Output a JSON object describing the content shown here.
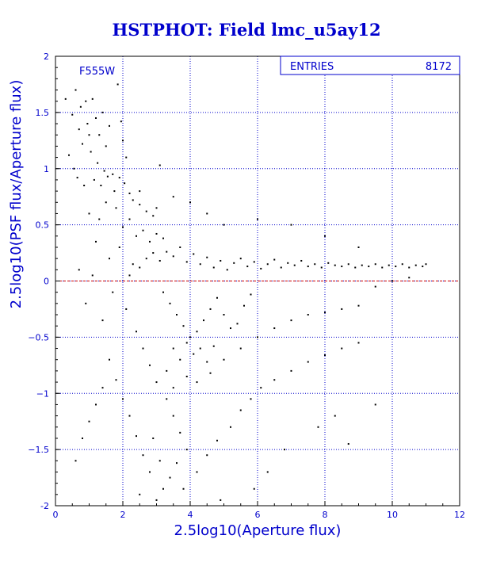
{
  "chart_data": {
    "type": "scatter",
    "title": "HSTPHOT: Field lmc_u5ay12",
    "xlabel": "2.5log10(Aperture flux)",
    "ylabel": "2.5log10(PSF flux/Aperture flux)",
    "xlim": [
      0,
      12
    ],
    "ylim": [
      -2,
      2
    ],
    "x_ticks": [
      0,
      2,
      4,
      6,
      8,
      10,
      12
    ],
    "x_tick_labels": [
      "0",
      "2",
      "4",
      "6",
      "8",
      "10",
      "12"
    ],
    "y_ticks": [
      -2,
      -1.5,
      -1,
      -0.5,
      0,
      0.5,
      1,
      1.5,
      2
    ],
    "y_tick_labels": [
      "-2",
      "−1.5",
      "−1",
      "−0.5",
      "0",
      "0.5",
      "1",
      "1.5",
      "2"
    ],
    "grid": true,
    "reference_line_y": 0,
    "annotation": "F555W",
    "stats": {
      "label": "ENTRIES",
      "value": "8172"
    },
    "colors": {
      "text": "#0000cc",
      "grid": "#0000cc",
      "frame": "#000000",
      "points": "#000000",
      "reference_line": "#cc0000"
    },
    "points": [
      [
        0.3,
        1.62
      ],
      [
        0.5,
        1.48
      ],
      [
        0.6,
        1.7
      ],
      [
        0.7,
        1.35
      ],
      [
        0.75,
        1.55
      ],
      [
        0.8,
        1.22
      ],
      [
        0.9,
        1.6
      ],
      [
        0.95,
        1.4
      ],
      [
        1.0,
        1.3
      ],
      [
        1.05,
        1.15
      ],
      [
        1.1,
        1.62
      ],
      [
        1.2,
        1.45
      ],
      [
        1.25,
        1.05
      ],
      [
        1.3,
        1.3
      ],
      [
        1.4,
        1.5
      ],
      [
        1.45,
        0.98
      ],
      [
        1.5,
        1.2
      ],
      [
        1.6,
        1.38
      ],
      [
        1.7,
        0.95
      ],
      [
        1.85,
        1.75
      ],
      [
        1.95,
        1.42
      ],
      [
        2.0,
        1.25
      ],
      [
        2.1,
        1.1
      ],
      [
        0.4,
        1.12
      ],
      [
        0.55,
        1.0
      ],
      [
        0.65,
        0.92
      ],
      [
        0.85,
        0.85
      ],
      [
        1.15,
        0.9
      ],
      [
        1.35,
        0.85
      ],
      [
        1.55,
        0.93
      ],
      [
        1.75,
        0.8
      ],
      [
        1.9,
        0.92
      ],
      [
        2.05,
        0.87
      ],
      [
        2.2,
        0.78
      ],
      [
        2.3,
        0.72
      ],
      [
        2.5,
        0.68
      ],
      [
        2.7,
        0.62
      ],
      [
        2.9,
        0.58
      ],
      [
        3.1,
        1.03
      ],
      [
        1.0,
        0.6
      ],
      [
        1.3,
        0.55
      ],
      [
        1.5,
        0.7
      ],
      [
        1.8,
        0.65
      ],
      [
        2.0,
        0.48
      ],
      [
        2.2,
        0.55
      ],
      [
        2.4,
        0.4
      ],
      [
        2.6,
        0.45
      ],
      [
        2.8,
        0.35
      ],
      [
        3.0,
        0.42
      ],
      [
        3.2,
        0.38
      ],
      [
        1.2,
        0.35
      ],
      [
        1.6,
        0.2
      ],
      [
        1.9,
        0.3
      ],
      [
        2.3,
        0.15
      ],
      [
        0.7,
        0.1
      ],
      [
        0.9,
        -0.2
      ],
      [
        1.1,
        0.05
      ],
      [
        1.4,
        -0.35
      ],
      [
        1.7,
        -0.1
      ],
      [
        2.1,
        -0.25
      ],
      [
        2.4,
        -0.45
      ],
      [
        2.6,
        -0.6
      ],
      [
        2.8,
        -0.75
      ],
      [
        3.0,
        -0.9
      ],
      [
        3.3,
        -1.05
      ],
      [
        3.5,
        -1.2
      ],
      [
        3.7,
        -1.35
      ],
      [
        3.9,
        -1.5
      ],
      [
        3.6,
        -1.62
      ],
      [
        3.4,
        -1.75
      ],
      [
        3.2,
        -1.85
      ],
      [
        3.0,
        -1.95
      ],
      [
        2.8,
        -1.7
      ],
      [
        2.6,
        -1.55
      ],
      [
        2.4,
        -1.38
      ],
      [
        2.2,
        -1.2
      ],
      [
        2.0,
        -1.05
      ],
      [
        1.8,
        -0.88
      ],
      [
        1.6,
        -0.7
      ],
      [
        1.4,
        -0.95
      ],
      [
        1.2,
        -1.1
      ],
      [
        1.0,
        -1.25
      ],
      [
        0.8,
        -1.4
      ],
      [
        0.6,
        -1.6
      ],
      [
        2.5,
        -1.9
      ],
      [
        2.9,
        -1.4
      ],
      [
        3.1,
        -1.6
      ],
      [
        3.8,
        -1.85
      ],
      [
        4.2,
        -1.7
      ],
      [
        4.5,
        -1.55
      ],
      [
        4.8,
        -1.42
      ],
      [
        5.2,
        -1.3
      ],
      [
        5.5,
        -1.15
      ],
      [
        5.8,
        -1.05
      ],
      [
        6.1,
        -0.95
      ],
      [
        6.5,
        -0.88
      ],
      [
        7.0,
        -0.8
      ],
      [
        7.5,
        -0.72
      ],
      [
        8.0,
        -0.66
      ],
      [
        8.5,
        -0.6
      ],
      [
        9.0,
        -0.55
      ],
      [
        2.2,
        0.05
      ],
      [
        2.5,
        0.12
      ],
      [
        2.7,
        0.2
      ],
      [
        2.9,
        0.25
      ],
      [
        3.1,
        0.18
      ],
      [
        3.3,
        0.26
      ],
      [
        3.5,
        0.22
      ],
      [
        3.7,
        0.3
      ],
      [
        3.9,
        0.17
      ],
      [
        4.1,
        0.24
      ],
      [
        4.3,
        0.15
      ],
      [
        4.5,
        0.21
      ],
      [
        4.7,
        0.12
      ],
      [
        4.9,
        0.18
      ],
      [
        5.1,
        0.1
      ],
      [
        5.3,
        0.16
      ],
      [
        5.5,
        0.2
      ],
      [
        5.7,
        0.13
      ],
      [
        5.9,
        0.17
      ],
      [
        6.1,
        0.11
      ],
      [
        6.3,
        0.15
      ],
      [
        6.5,
        0.19
      ],
      [
        6.7,
        0.12
      ],
      [
        6.9,
        0.16
      ],
      [
        7.1,
        0.14
      ],
      [
        7.3,
        0.18
      ],
      [
        7.5,
        0.13
      ],
      [
        7.7,
        0.15
      ],
      [
        7.9,
        0.12
      ],
      [
        8.1,
        0.16
      ],
      [
        8.3,
        0.14
      ],
      [
        8.5,
        0.13
      ],
      [
        8.7,
        0.15
      ],
      [
        8.9,
        0.12
      ],
      [
        9.1,
        0.14
      ],
      [
        9.3,
        0.13
      ],
      [
        9.5,
        0.15
      ],
      [
        9.7,
        0.12
      ],
      [
        9.9,
        0.14
      ],
      [
        10.1,
        0.13
      ],
      [
        10.3,
        0.15
      ],
      [
        10.5,
        0.12
      ],
      [
        10.7,
        0.14
      ],
      [
        10.9,
        0.13
      ],
      [
        11.0,
        0.15
      ],
      [
        3.2,
        -0.1
      ],
      [
        3.4,
        -0.2
      ],
      [
        3.6,
        -0.3
      ],
      [
        3.8,
        -0.4
      ],
      [
        4.0,
        -0.5
      ],
      [
        4.2,
        -0.45
      ],
      [
        4.4,
        -0.35
      ],
      [
        4.6,
        -0.25
      ],
      [
        4.8,
        -0.15
      ],
      [
        5.0,
        -0.3
      ],
      [
        5.2,
        -0.42
      ],
      [
        5.4,
        -0.38
      ],
      [
        5.6,
        -0.22
      ],
      [
        5.8,
        -0.12
      ],
      [
        3.5,
        -0.6
      ],
      [
        3.7,
        -0.7
      ],
      [
        3.9,
        -0.55
      ],
      [
        4.1,
        -0.65
      ],
      [
        4.3,
        -0.6
      ],
      [
        4.5,
        -0.72
      ],
      [
        4.7,
        -0.58
      ],
      [
        3.3,
        -0.8
      ],
      [
        3.5,
        -0.95
      ],
      [
        3.9,
        -0.85
      ],
      [
        4.2,
        -0.9
      ],
      [
        4.6,
        -0.82
      ],
      [
        5.0,
        -0.7
      ],
      [
        5.5,
        -0.6
      ],
      [
        6.0,
        -0.5
      ],
      [
        6.5,
        -0.42
      ],
      [
        7.0,
        -0.35
      ],
      [
        7.5,
        -0.3
      ],
      [
        8.0,
        -0.28
      ],
      [
        8.5,
        -0.25
      ],
      [
        9.0,
        -0.22
      ],
      [
        10.0,
        0.0
      ],
      [
        10.5,
        0.03
      ],
      [
        9.5,
        -0.05
      ],
      [
        9.0,
        0.3
      ],
      [
        8.0,
        0.4
      ],
      [
        7.0,
        0.5
      ],
      [
        6.0,
        0.55
      ],
      [
        5.0,
        0.5
      ],
      [
        4.5,
        0.6
      ],
      [
        4.0,
        0.7
      ],
      [
        3.5,
        0.75
      ],
      [
        3.0,
        0.65
      ],
      [
        2.5,
        0.8
      ],
      [
        7.8,
        -1.3
      ],
      [
        8.3,
        -1.2
      ],
      [
        8.7,
        -1.45
      ],
      [
        9.5,
        -1.1
      ],
      [
        6.8,
        -1.5
      ],
      [
        6.3,
        -1.7
      ],
      [
        5.9,
        -1.85
      ],
      [
        4.9,
        -1.95
      ]
    ]
  }
}
